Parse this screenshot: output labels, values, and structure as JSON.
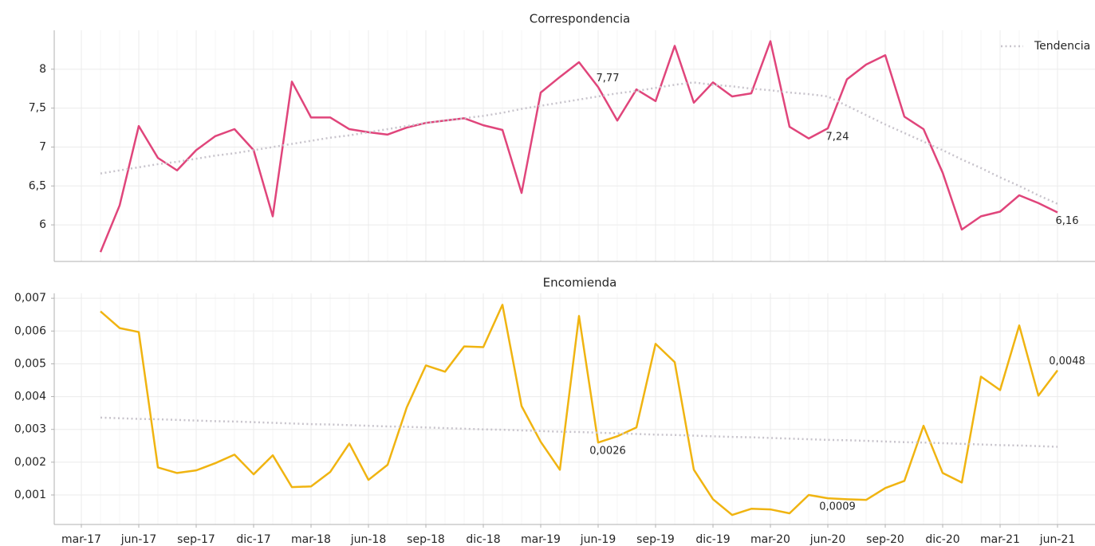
{
  "chart_data": [
    {
      "type": "line",
      "title": "Correspondencia",
      "legend": "upper right",
      "grid": true,
      "ylim": [
        5.53,
        8.5
      ],
      "yticks": [
        6,
        {
          "value": 6.5,
          "label": "6,5"
        },
        7,
        {
          "value": 7.5,
          "label": "7,5"
        },
        8
      ],
      "series": [
        {
          "color": "#e0457b",
          "linestyle": "solid",
          "values": [
            null,
            5.65,
            6.25,
            7.27,
            6.86,
            6.7,
            6.96,
            7.14,
            7.23,
            6.96,
            6.11,
            7.84,
            7.38,
            7.38,
            7.23,
            7.19,
            7.16,
            7.25,
            7.31,
            7.34,
            7.37,
            7.28,
            7.22,
            6.41,
            7.7,
            7.9,
            8.09,
            7.77,
            7.34,
            7.74,
            7.59,
            8.3,
            7.57,
            7.83,
            7.65,
            7.69,
            8.36,
            7.26,
            7.11,
            7.24,
            7.87,
            8.06,
            8.18,
            7.39,
            7.23,
            6.67,
            5.94,
            6.11,
            6.17,
            6.38,
            6.28,
            6.16
          ],
          "value_labels": [
            null,
            null,
            null,
            null,
            null,
            null,
            null,
            null,
            null,
            null,
            null,
            null,
            null,
            null,
            null,
            null,
            null,
            null,
            null,
            null,
            null,
            null,
            null,
            null,
            null,
            null,
            null,
            "7,77",
            null,
            null,
            null,
            null,
            null,
            null,
            null,
            null,
            null,
            null,
            null,
            "7,24",
            null,
            null,
            null,
            null,
            null,
            null,
            null,
            null,
            null,
            null,
            null,
            "6,16"
          ]
        },
        {
          "name": "Tendencia",
          "color": "#c8c4cc",
          "linestyle": "dotted",
          "values": [
            null,
            6.66,
            6.7,
            6.74,
            6.78,
            6.81,
            6.85,
            6.89,
            6.92,
            6.96,
            7.0,
            7.04,
            7.08,
            7.12,
            7.15,
            7.19,
            7.23,
            7.27,
            7.31,
            7.34,
            7.37,
            7.4,
            7.44,
            7.49,
            7.53,
            7.57,
            7.61,
            7.65,
            7.69,
            7.72,
            7.76,
            7.8,
            7.83,
            7.8,
            7.78,
            7.75,
            7.73,
            7.7,
            7.68,
            7.65,
            7.53,
            7.41,
            7.29,
            7.18,
            7.07,
            6.96,
            6.84,
            6.73,
            6.61,
            6.5,
            6.38,
            6.27
          ]
        }
      ]
    },
    {
      "type": "line",
      "title": "Encomienda",
      "grid": true,
      "categories": [
        "mar-17",
        null,
        null,
        "jun-17",
        null,
        null,
        "sep-17",
        null,
        null,
        "dic-17",
        null,
        null,
        "mar-18",
        null,
        null,
        "jun-18",
        null,
        null,
        "sep-18",
        null,
        null,
        "dic-18",
        null,
        null,
        "mar-19",
        null,
        null,
        "jun-19",
        null,
        null,
        "sep-19",
        null,
        null,
        "dic-19",
        null,
        null,
        "mar-20",
        null,
        null,
        "jun-20",
        null,
        null,
        "sep-20",
        null,
        null,
        "dic-20",
        null,
        null,
        "mar-21",
        null,
        null,
        "jun-21"
      ],
      "ylim": [
        0.0001,
        0.00715
      ],
      "yticks": [
        {
          "value": 0.001,
          "label": "0,001"
        },
        {
          "value": 0.002,
          "label": "0,002"
        },
        {
          "value": 0.003,
          "label": "0,003"
        },
        {
          "value": 0.004,
          "label": "0,004"
        },
        {
          "value": 0.005,
          "label": "0,005"
        },
        {
          "value": 0.006,
          "label": "0,006"
        },
        {
          "value": 0.007,
          "label": "0,007"
        }
      ],
      "series": [
        {
          "color": "#f0b411",
          "linestyle": "solid",
          "values": [
            null,
            0.0066,
            0.00609,
            0.00597,
            0.00184,
            0.00167,
            0.00175,
            0.00197,
            0.00223,
            0.00163,
            0.00221,
            0.00124,
            0.00126,
            0.0017,
            0.00257,
            0.00146,
            0.00192,
            0.00367,
            0.00495,
            0.00476,
            0.00553,
            0.00551,
            0.0068,
            0.00371,
            0.00262,
            0.00177,
            0.00646,
            0.0026,
            0.00279,
            0.00306,
            0.00561,
            0.00505,
            0.00177,
            0.00087,
            0.00039,
            0.00058,
            0.00056,
            0.00044,
            0.001,
            0.0009,
            0.00087,
            0.00085,
            0.00121,
            0.00143,
            0.00311,
            0.00167,
            0.00138,
            0.00461,
            0.0042,
            0.00617,
            0.00403,
            0.0048
          ],
          "value_labels": [
            null,
            null,
            null,
            null,
            null,
            null,
            null,
            null,
            null,
            null,
            null,
            null,
            null,
            null,
            null,
            null,
            null,
            null,
            null,
            null,
            null,
            null,
            null,
            null,
            null,
            null,
            null,
            "0,0026",
            null,
            null,
            null,
            null,
            null,
            null,
            null,
            null,
            null,
            null,
            null,
            "0,0009",
            null,
            null,
            null,
            null,
            null,
            null,
            null,
            null,
            null,
            null,
            null,
            "0,0048"
          ]
        },
        {
          "color": "#c8c4cc",
          "linestyle": "dotted",
          "values": [
            null,
            0.00336,
            0.00334,
            0.00332,
            0.00331,
            0.00329,
            0.00327,
            0.00325,
            0.00324,
            0.00322,
            0.0032,
            0.00318,
            0.00316,
            0.00315,
            0.00313,
            0.00311,
            0.00309,
            0.00308,
            0.00306,
            0.00304,
            0.00302,
            0.003,
            0.00299,
            0.00297,
            0.00295,
            0.00293,
            0.00292,
            0.0029,
            0.00288,
            0.00286,
            0.00284,
            0.00283,
            0.00281,
            0.00279,
            0.00277,
            0.00276,
            0.00274,
            0.00272,
            0.0027,
            0.00268,
            0.00267,
            0.00265,
            0.00263,
            0.00261,
            0.0026,
            0.00258,
            0.00256,
            0.00254,
            0.00252,
            0.00251,
            0.00249,
            0.00247
          ]
        }
      ]
    }
  ]
}
